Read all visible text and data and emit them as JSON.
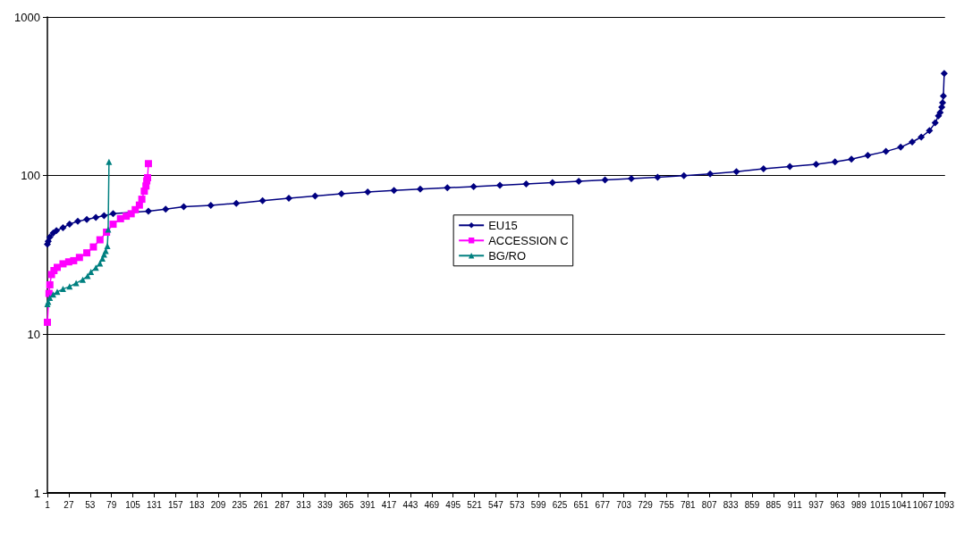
{
  "chart_data": {
    "type": "line",
    "log": "y",
    "grid": "y",
    "legend": "center",
    "ylim": [
      1,
      1000
    ],
    "yticks": [
      1,
      10,
      100,
      1000
    ],
    "xlim": [
      1,
      1094
    ],
    "xticks": [
      1,
      27,
      53,
      79,
      105,
      131,
      157,
      183,
      209,
      235,
      261,
      287,
      313,
      339,
      365,
      391,
      417,
      443,
      469,
      495,
      521,
      547,
      573,
      599,
      625,
      651,
      677,
      703,
      729,
      755,
      781,
      807,
      833,
      859,
      885,
      911,
      937,
      963,
      989,
      1015,
      1041,
      1067,
      1093
    ],
    "series": [
      {
        "name": "EU15",
        "color": "#000080",
        "marker": "diamond",
        "x": [
          1,
          2,
          4,
          8,
          12,
          20,
          28,
          38,
          49,
          60,
          70,
          81,
          124,
          145,
          167,
          200,
          231,
          263,
          295,
          327,
          359,
          391,
          423,
          455,
          488,
          520,
          552,
          584,
          616,
          648,
          680,
          712,
          744,
          776,
          808,
          840,
          873,
          905,
          937,
          960,
          980,
          1000,
          1022,
          1040,
          1054,
          1065,
          1075,
          1082,
          1086,
          1088,
          1090,
          1091,
          1092,
          1093
        ],
        "values": [
          37,
          38.5,
          41,
          43.5,
          45,
          47,
          49.4,
          51.5,
          53,
          54.5,
          56,
          57.5,
          59.7,
          61.5,
          63.6,
          65,
          66.9,
          69.5,
          72,
          74.5,
          76.8,
          78.8,
          80.7,
          82.3,
          83.8,
          85.3,
          87,
          88.7,
          90.4,
          92.2,
          94,
          95.7,
          97.5,
          100,
          102.6,
          106,
          110.6,
          114,
          117.8,
          122,
          127,
          134,
          142,
          151,
          163,
          175,
          192,
          215,
          238,
          250,
          270,
          288,
          318,
          441
        ]
      },
      {
        "name": "ACCESSION C",
        "color": "#ff00ff",
        "marker": "square",
        "x": [
          1,
          3,
          4,
          6,
          9,
          13,
          20,
          27,
          33,
          40,
          49,
          57,
          65,
          73,
          81,
          90,
          97,
          103,
          108,
          113,
          116,
          119,
          121,
          122,
          123,
          124
        ],
        "values": [
          11.9,
          18.1,
          20.5,
          23.8,
          25.2,
          26.4,
          27.8,
          28.6,
          29.1,
          30.5,
          32.6,
          35.5,
          39.4,
          44,
          49.4,
          53.5,
          55.5,
          57.5,
          61,
          65.2,
          71,
          79.8,
          86,
          92.7,
          97,
          119
        ]
      },
      {
        "name": "BG/RO",
        "color": "#008080",
        "marker": "triangle",
        "x": [
          1,
          2,
          4,
          8,
          13,
          20,
          28,
          36,
          44,
          50,
          54,
          60,
          65,
          68,
          70,
          72,
          74,
          75,
          76
        ],
        "values": [
          15.5,
          16,
          17,
          17.8,
          18.5,
          19.3,
          20,
          21,
          22.1,
          23.3,
          24.7,
          26.3,
          28,
          30,
          31.8,
          33.5,
          36,
          45.8,
          122
        ]
      }
    ]
  }
}
